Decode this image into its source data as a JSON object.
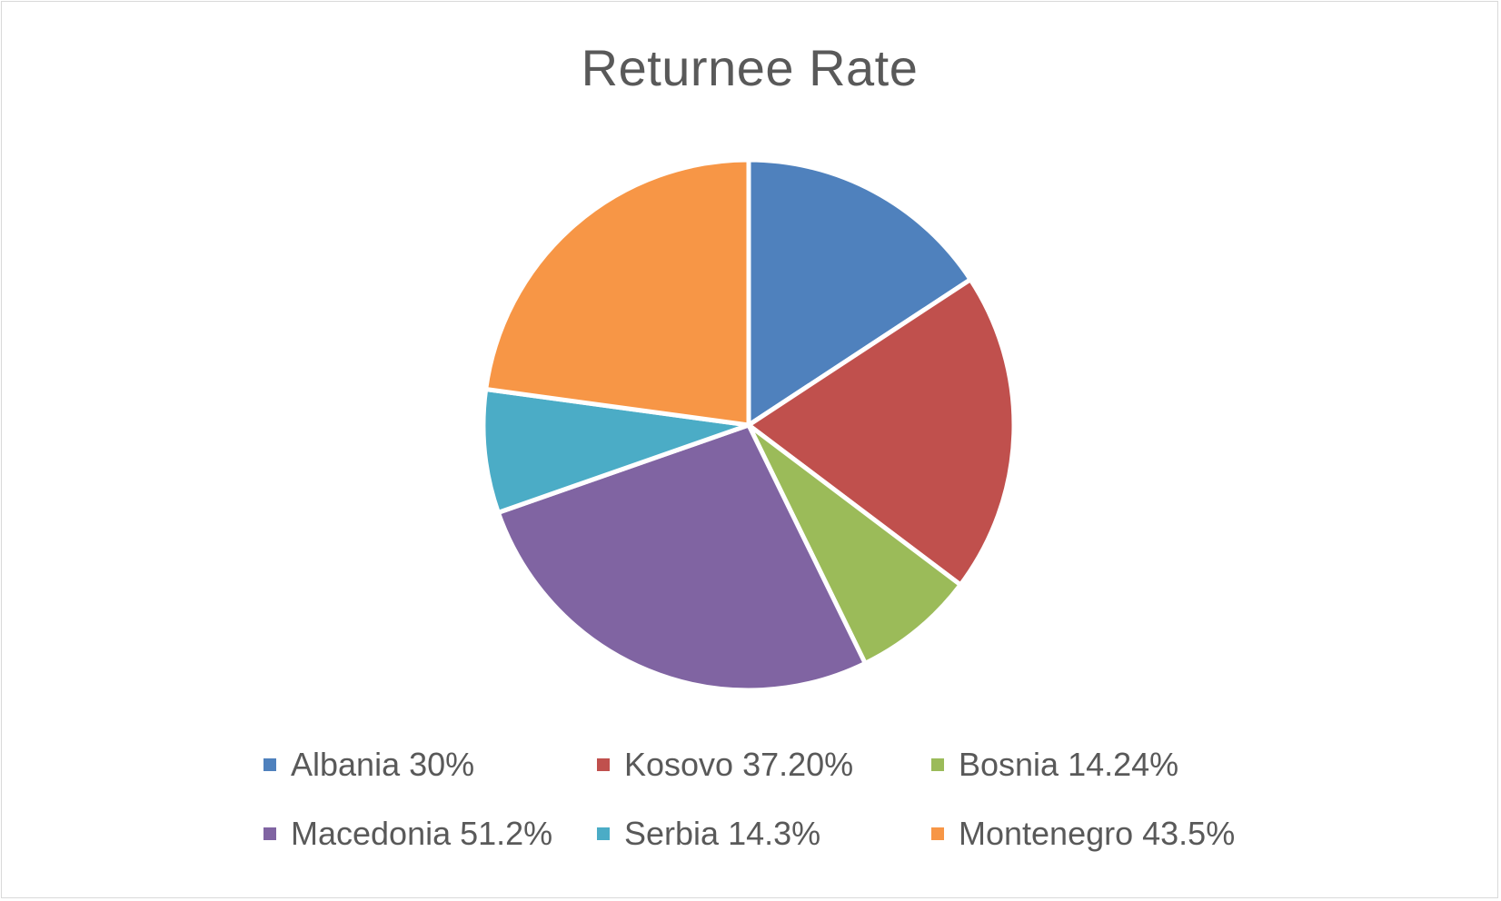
{
  "chart_data": {
    "type": "pie",
    "title": "Returnee Rate",
    "legend_position": "bottom",
    "series": [
      {
        "values": [
          30,
          37.2,
          14.24,
          51.2,
          14.3,
          43.5
        ]
      }
    ],
    "categories": [
      "Albania",
      "Kosovo",
      "Bosnia",
      "Macedonia",
      "Serbia",
      "Montenegro"
    ],
    "slices": [
      {
        "label": "Albania",
        "value": 30,
        "color": "#4F81BD"
      },
      {
        "label": "Kosovo",
        "value": 37.2,
        "color": "#C0504D"
      },
      {
        "label": "Bosnia",
        "value": 14.24,
        "color": "#9BBB59"
      },
      {
        "label": "Macedonia",
        "value": 51.2,
        "color": "#8064A2"
      },
      {
        "label": "Serbia",
        "value": 14.3,
        "color": "#4BACC6"
      },
      {
        "label": "Montenegro",
        "value": 43.5,
        "color": "#F79646"
      }
    ],
    "legend": [
      {
        "text": "Albania 30%",
        "color": "#4F81BD"
      },
      {
        "text": "Kosovo 37.20%",
        "color": "#C0504D"
      },
      {
        "text": "Bosnia 14.24%",
        "color": "#9BBB59"
      },
      {
        "text": "Macedonia 51.2%",
        "color": "#8064A2"
      },
      {
        "text": "Serbia 14.3%",
        "color": "#4BACC6"
      },
      {
        "text": "Montenegro 43.5%",
        "color": "#F79646"
      }
    ]
  }
}
